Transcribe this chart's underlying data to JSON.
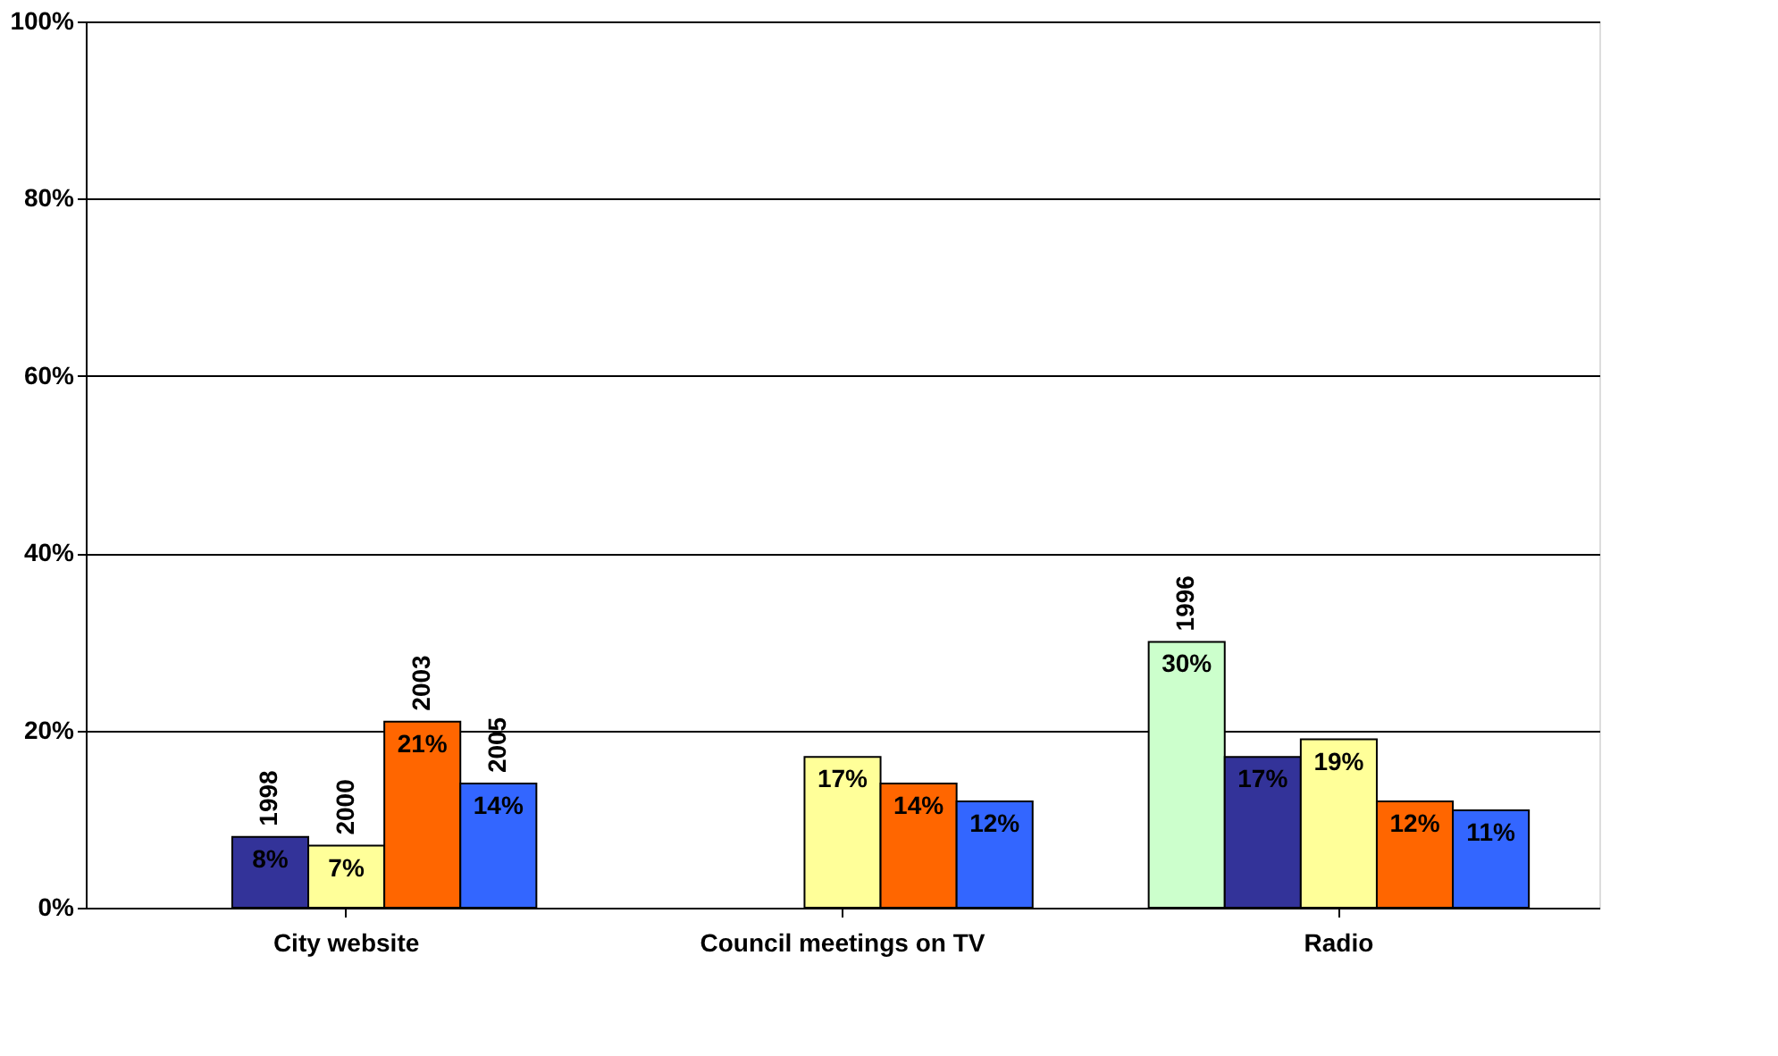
{
  "chart_data": {
    "type": "bar",
    "categories": [
      "City website",
      "Council meetings on TV",
      "Radio"
    ],
    "series": [
      {
        "name": "1996",
        "color": "#ccffcc",
        "values": [
          null,
          null,
          30
        ]
      },
      {
        "name": "1998",
        "color": "#333399",
        "values": [
          8,
          null,
          17
        ]
      },
      {
        "name": "2000",
        "color": "#ffff99",
        "values": [
          7,
          17,
          19
        ]
      },
      {
        "name": "2003",
        "color": "#ff6600",
        "values": [
          21,
          14,
          12
        ]
      },
      {
        "name": "2005",
        "color": "#3366ff",
        "values": [
          14,
          12,
          11
        ]
      }
    ],
    "ylim": [
      0,
      100
    ],
    "yticks": [
      {
        "value": 0,
        "label": "0%"
      },
      {
        "value": 20,
        "label": "20%"
      },
      {
        "value": 40,
        "label": "40%"
      },
      {
        "value": 60,
        "label": "60%"
      },
      {
        "value": 80,
        "label": "80%"
      },
      {
        "value": 100,
        "label": "100%"
      }
    ],
    "grid": "y",
    "legend": false,
    "value_labels": [
      [
        null,
        null,
        "30%"
      ],
      [
        "8%",
        null,
        "17%"
      ],
      [
        "7%",
        "17%",
        "19%"
      ],
      [
        "21%",
        "14%",
        "12%"
      ],
      [
        "14%",
        "12%",
        "11%"
      ]
    ]
  }
}
